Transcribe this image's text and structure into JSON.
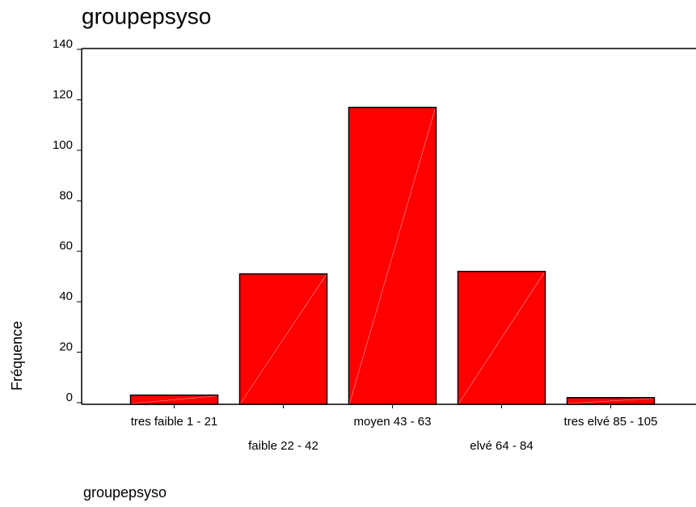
{
  "chart_data": {
    "type": "bar",
    "title": "groupepsyso",
    "x_label": "groupepsyso",
    "y_label": "Fréquence",
    "categories": [
      "tres faible 1 - 21",
      "faible 22 - 42",
      "moyen 43 - 63",
      "elvé 64 - 84",
      "tres elvé 85 - 105"
    ],
    "values": [
      3,
      51,
      117,
      52,
      2
    ],
    "color": "#ff0000",
    "ylim": [
      0,
      140
    ],
    "yticks": [
      0,
      20,
      40,
      60,
      80,
      100,
      120,
      140
    ],
    "grid": false
  }
}
